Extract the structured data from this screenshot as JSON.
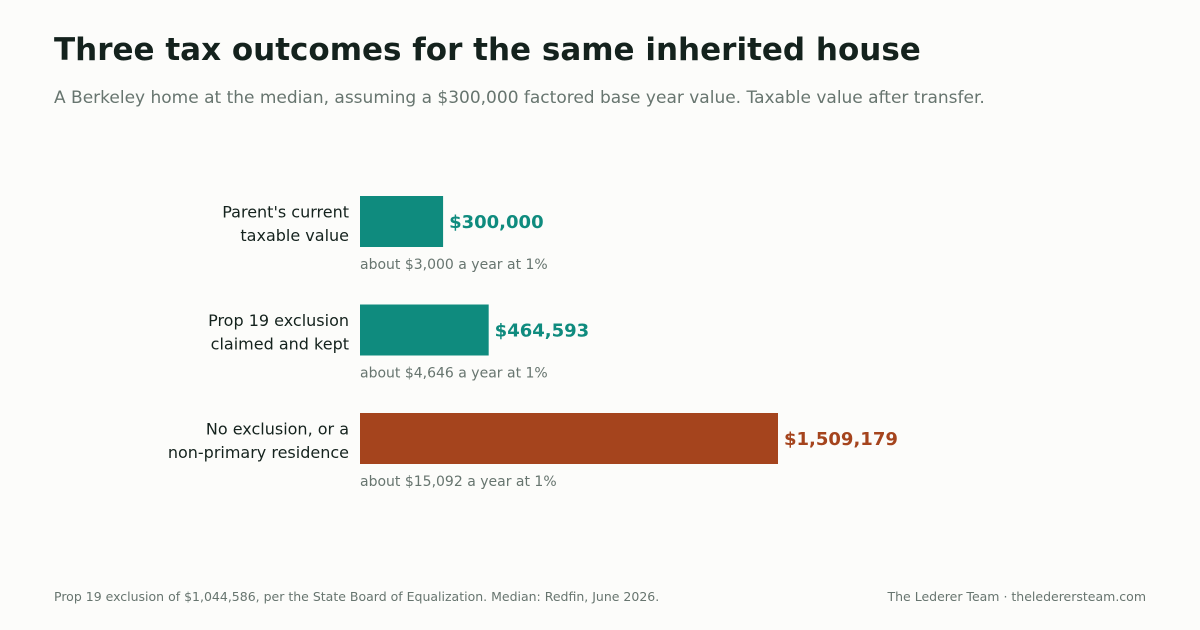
{
  "header": {
    "title": "Three tax outcomes for the same inherited house",
    "subtitle": "A Berkeley home at the median, assuming a $300,000 factored base year value. Taxable value after transfer."
  },
  "chart_data": {
    "type": "bar",
    "orientation": "horizontal",
    "title": "Three tax outcomes for the same inherited house",
    "subtitle": "A Berkeley home at the median, assuming a $300,000 factored base year value. Taxable value after transfer.",
    "categories": [
      [
        "Parent's current",
        "taxable value"
      ],
      [
        "Prop 19 exclusion",
        "claimed and kept"
      ],
      [
        "No exclusion, or a",
        "non-primary residence"
      ]
    ],
    "values": [
      300000,
      464593,
      1509179
    ],
    "value_labels": [
      "$300,000",
      "$464,593",
      "$1,509,179"
    ],
    "annotations": [
      "about $3,000 a year at 1%",
      "about $4,646 a year at 1%",
      "about $15,092 a year at 1%"
    ],
    "bar_colors": [
      "#0f8b7e",
      "#0f8b7e",
      "#a5441d"
    ],
    "label_colors": [
      "#0f8b7e",
      "#0f8b7e",
      "#a5441d"
    ],
    "xlim": [
      0,
      1509179
    ],
    "grid": false,
    "legend": "none",
    "xlabel": "",
    "ylabel": ""
  },
  "footer": {
    "source": "Prop 19 exclusion of $1,044,586, per the State Board of Equalization. Median: Redfin, June 2026.",
    "credit": "The Lederer Team  ·  thelederersteam.com"
  }
}
